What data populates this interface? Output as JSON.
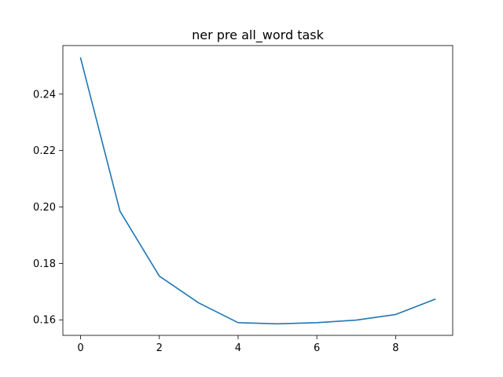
{
  "chart_data": {
    "type": "line",
    "title": "ner pre all_word task",
    "xlabel": "",
    "ylabel": "",
    "xlim": [
      -0.45,
      9.45
    ],
    "ylim": [
      0.1545,
      0.2572
    ],
    "grid": false,
    "legend": "none",
    "xticks": [
      0,
      2,
      4,
      6,
      8
    ],
    "yticks": [
      0.16,
      0.18,
      0.2,
      0.22,
      0.24
    ],
    "xtick_labels": [
      "0",
      "2",
      "4",
      "6",
      "8"
    ],
    "ytick_labels": [
      "0.16",
      "0.18",
      "0.20",
      "0.22",
      "0.24"
    ],
    "series": [
      {
        "color": "#1f77b4",
        "x": [
          0,
          1,
          2,
          3,
          4,
          5,
          6,
          7,
          8,
          9
        ],
        "y": [
          0.2528,
          0.1985,
          0.1755,
          0.166,
          0.159,
          0.1586,
          0.159,
          0.1599,
          0.1619,
          0.1673
        ]
      }
    ]
  }
}
